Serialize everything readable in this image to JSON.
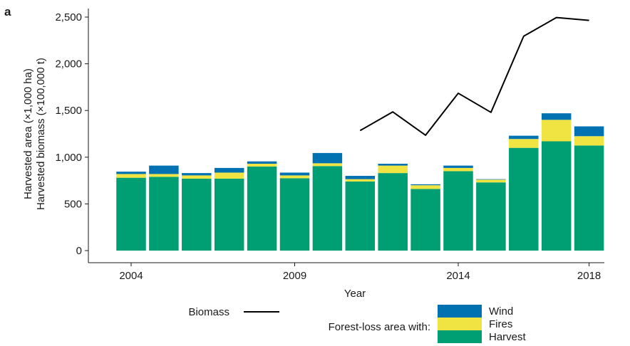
{
  "panel_label": "a",
  "chart_data": {
    "type": "bar",
    "stacked": true,
    "title": "",
    "xlabel": "Year",
    "ylabel": [
      "Harvested area (×1,000 ha)",
      "Harvested biomass (×100,000 t)"
    ],
    "ylim": [
      0,
      2500
    ],
    "yticks": [
      0,
      500,
      1000,
      1500,
      2000,
      2500
    ],
    "ytick_labels": [
      "0",
      "500",
      "1,000",
      "1,500",
      "2,000",
      "2,500"
    ],
    "xticks": [
      2004,
      2009,
      2014,
      2018
    ],
    "xtick_labels": [
      "2004",
      "2009",
      "2014",
      "2018"
    ],
    "years": [
      2004,
      2005,
      2006,
      2007,
      2008,
      2009,
      2010,
      2011,
      2012,
      2013,
      2014,
      2015,
      2016,
      2017,
      2018
    ],
    "series": [
      {
        "name": "Harvest",
        "color": "#009e73",
        "values": [
          780,
          790,
          770,
          770,
          900,
          775,
          905,
          740,
          830,
          660,
          850,
          730,
          1100,
          1170,
          1125
        ]
      },
      {
        "name": "Fires",
        "color": "#f0e442",
        "values": [
          40,
          30,
          35,
          65,
          30,
          30,
          30,
          25,
          80,
          40,
          35,
          30,
          95,
          230,
          100
        ]
      },
      {
        "name": "Wind",
        "color": "#0072b2",
        "values": [
          25,
          90,
          25,
          50,
          25,
          30,
          110,
          35,
          20,
          10,
          25,
          5,
          35,
          70,
          105
        ]
      }
    ],
    "line": {
      "name": "Biomass",
      "color": "#000000",
      "x": [
        2011,
        2012,
        2013,
        2014,
        2015,
        2016,
        2017,
        2018
      ],
      "y": [
        1285,
        1485,
        1235,
        1685,
        1480,
        2295,
        2495,
        2465
      ]
    },
    "legend": {
      "line_label": "Biomass",
      "bars_title": "Forest-loss area with:",
      "bar_labels": [
        "Wind",
        "Fires",
        "Harvest"
      ],
      "placement": "bottom"
    },
    "grid": false
  }
}
